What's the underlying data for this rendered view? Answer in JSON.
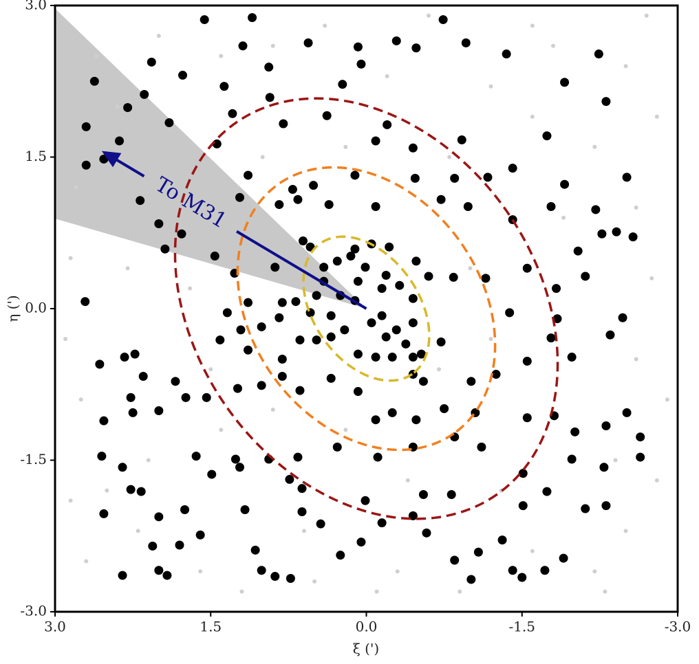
{
  "chart_data": {
    "type": "scatter",
    "xlabel": "ξ (')",
    "ylabel": "η (')",
    "xlim": [
      3,
      -3
    ],
    "ylim": [
      -3,
      3
    ],
    "xticks": [
      {
        "value": 3,
        "label": "3.0"
      },
      1.5,
      {
        "value": 0,
        "label": "0.0"
      },
      -1.5,
      {
        "value": -3,
        "label": "-3.0"
      }
    ],
    "yticks": [
      {
        "value": -3,
        "label": "-3.0"
      },
      -1.5,
      {
        "value": 0,
        "label": "0.0"
      },
      1.5,
      {
        "value": 3,
        "label": "3.0"
      }
    ],
    "shaded_region": {
      "color": "#c8c8c8",
      "points": [
        [
          0,
          0
        ],
        [
          3,
          2.97
        ],
        [
          3,
          0.89
        ]
      ]
    },
    "annotations": [
      {
        "text": "To M31",
        "color": "#0f0f8a",
        "from": [
          0,
          0
        ],
        "to": [
          2.55,
          1.56
        ]
      }
    ],
    "ellipses": [
      {
        "color": "#d8b92a",
        "center": [
          0,
          0
        ],
        "a": 0.77,
        "b": 0.52,
        "angle": 55
      },
      {
        "color": "#f08020",
        "center": [
          0,
          0
        ],
        "a": 1.47,
        "b": 1.14,
        "angle": 55
      },
      {
        "color": "#9a1616",
        "center": [
          0,
          0
        ],
        "a": 2.19,
        "b": 1.69,
        "angle": 55
      }
    ],
    "series": [
      {
        "color": "#cfcfcf",
        "x": [
          -2.7,
          -2.5,
          -2.8,
          -2.6,
          -2.75,
          -2.6,
          -2.8,
          -2.5,
          -2.2,
          -1.6,
          -1.2,
          -0.6,
          -0.2,
          0.4,
          0.9,
          1.4,
          2.0,
          2.6,
          2.8,
          2.85,
          2.9,
          2.75,
          2.85,
          2.7,
          2.2,
          1.6,
          1.2,
          0.5,
          -0.3,
          -0.9,
          -1.6,
          -2.3,
          -1.9,
          -1.6,
          -1.0,
          -0.7,
          0.2,
          0.9,
          1.7,
          2.3,
          1.9,
          2.4,
          -2.0,
          -1.3,
          -0.4,
          0.6,
          1.4,
          2.1,
          -2.2,
          -0.8,
          0.2,
          1.0,
          -1.2,
          1.5,
          -2.4,
          2.5,
          -0.1,
          1.1,
          -2.9,
          -1.8
        ],
        "values": [
          2.9,
          2.4,
          1.9,
          1.0,
          0.3,
          -0.5,
          -1.7,
          -2.2,
          -2.6,
          2.8,
          2.2,
          2.9,
          2.3,
          2.8,
          2.6,
          2.5,
          2.7,
          2.5,
          1.2,
          0.5,
          -0.3,
          -0.9,
          -1.9,
          -2.5,
          -2.2,
          -2.6,
          -2.8,
          -2.7,
          -2.6,
          -2.8,
          -2.4,
          -2.8,
          0.9,
          1.9,
          0.4,
          -0.6,
          -1.2,
          -1.0,
          0.2,
          0.4,
          1.2,
          2.0,
          -1.2,
          -1.8,
          -1.7,
          -2.2,
          -1.2,
          -1.5,
          1.6,
          1.5,
          1.6,
          1.5,
          -0.3,
          -0.6,
          -1.5,
          -1.8,
          -2.8,
          2.9,
          -0.9,
          2.6
        ]
      },
      {
        "color": "#000000",
        "x": [
          1.56,
          1.1,
          1.19,
          0.94,
          0.56,
          0.08,
          -0.29,
          -0.48,
          -0.74,
          -0.96,
          -1.35,
          -2.24,
          0.05,
          2.07,
          2.62,
          1.77,
          1.37,
          0.93,
          0.23,
          -1.91,
          -2.31,
          2.7,
          2.3,
          2.14,
          1.9,
          2.38,
          2.7,
          2.53,
          1.29,
          0.8,
          0.38,
          -0.2,
          -0.09,
          -0.45,
          -0.92,
          -1.74,
          1.44,
          1.14,
          0.71,
          0.51,
          0.11,
          -0.47,
          -0.85,
          -1.17,
          -1.41,
          -1.91,
          -2.51,
          2.18,
          2.0,
          1.94,
          1.78,
          1.22,
          0.84,
          0.66,
          0.36,
          -0.09,
          -0.72,
          -0.98,
          -1.41,
          -1.78,
          -2.21,
          -2.27,
          -2.41,
          -2.57,
          -2.04,
          1.46,
          1.27,
          0.88,
          0.61,
          0.15,
          -0.05,
          -0.22,
          -0.48,
          -0.6,
          -0.84,
          -1.15,
          -1.55,
          -1.83,
          -2.11,
          -1.38,
          -1.84,
          -2.47,
          2.71,
          2.57,
          2.53,
          2.33,
          2.23,
          2.15,
          2.55,
          2.35,
          2.27,
          2.17,
          2.53,
          2.0,
          1.75,
          2.27,
          2.25,
          2.0,
          1.74,
          1.54,
          1.41,
          1.24,
          1.14,
          1.01,
          0.81,
          0.64,
          0.34,
          0.08,
          -0.09,
          -0.25,
          -0.48,
          -0.75,
          -1.05,
          -1.55,
          -1.81,
          -2.01,
          -2.31,
          -2.51,
          -2.64,
          -2.64,
          -2.29,
          -1.98,
          -1.51,
          -1.11,
          -0.85,
          -0.45,
          -0.11,
          0.28,
          0.66,
          0.94,
          1.26,
          1.64,
          1.49,
          1.22,
          0.74,
          0.62,
          0.44,
          0.25,
          0.05,
          -0.15,
          -0.45,
          -0.58,
          -0.85,
          -1.08,
          -1.31,
          -1.51,
          -1.74,
          -2.11,
          -2.31,
          -0.82,
          -0.55,
          0.01,
          0.62,
          1.17,
          1.6,
          2.06,
          1.8,
          2.0,
          1.92,
          2.35,
          1.07,
          1.01,
          0.88,
          0.73,
          -1.01,
          -1.5,
          -1.41,
          -1.72,
          -1.9,
          0.11,
          -0.05,
          -0.19,
          -0.38,
          -0.45,
          -0.25,
          -0.09,
          0.08,
          0.34,
          0.48,
          0.64,
          0.34,
          0.25,
          0.41,
          0.48,
          0.08,
          -0.15,
          -0.32,
          -0.45,
          -0.72,
          -0.15,
          -0.45,
          0.28,
          0.11,
          -0.19,
          0.54,
          0.68,
          0.81,
          0.54,
          -0.45,
          -0.53,
          0.21,
          0.81,
          1.14,
          1.01,
          1.34,
          1.21,
          0.84,
          1.84,
          -0.55,
          -1.01,
          -1.25,
          -1.55,
          -1.78,
          -1.98,
          -2.35,
          0.01,
          0.41,
          -0.29
        ],
        "values": [
          2.86,
          2.88,
          2.6,
          2.39,
          2.63,
          2.59,
          2.65,
          2.58,
          2.86,
          2.63,
          2.52,
          2.52,
          2.42,
          2.44,
          2.25,
          2.31,
          2.2,
          2.09,
          2.22,
          2.24,
          2.05,
          1.8,
          1.99,
          2.12,
          1.84,
          1.66,
          1.42,
          1.48,
          1.93,
          1.83,
          1.91,
          1.82,
          1.66,
          1.59,
          1.67,
          1.71,
          1.63,
          1.32,
          1.18,
          1.22,
          1.32,
          1.29,
          1.29,
          1.3,
          1.39,
          1.23,
          1.3,
          1.07,
          0.84,
          0.59,
          0.74,
          1.1,
          1.03,
          1.08,
          1.03,
          1.01,
          1.08,
          1.01,
          0.88,
          1.01,
          0.98,
          0.74,
          0.76,
          0.71,
          0.57,
          0.52,
          0.35,
          0.41,
          0.67,
          0.52,
          0.64,
          0.61,
          0.47,
          0.32,
          0.31,
          0.3,
          0.4,
          0.2,
          0.32,
          -0.04,
          -0.1,
          -0.09,
          0.07,
          -0.55,
          -1.11,
          -0.48,
          -0.45,
          -0.67,
          -1.46,
          -1.57,
          -1.79,
          -1.81,
          -2.03,
          -2.06,
          -1.99,
          -0.88,
          -1.03,
          -1.01,
          -0.88,
          -0.88,
          -0.31,
          -0.79,
          -0.41,
          -0.76,
          -0.67,
          -0.81,
          -0.69,
          -0.82,
          -1.1,
          -1.03,
          -1.1,
          -0.99,
          -1.03,
          -1.08,
          -1.06,
          -1.22,
          -1.16,
          -1.03,
          -1.27,
          -1.47,
          -1.57,
          -1.49,
          -1.63,
          -1.37,
          -1.27,
          -1.37,
          -1.47,
          -1.37,
          -1.47,
          -1.49,
          -1.49,
          -1.46,
          -1.64,
          -1.57,
          -1.69,
          -1.78,
          -2.13,
          -2.44,
          -2.31,
          -2.12,
          -2.05,
          -2.22,
          -2.49,
          -2.41,
          -2.29,
          -1.95,
          -1.81,
          -1.98,
          -1.95,
          -1.84,
          -1.84,
          -1.9,
          -2.01,
          -1.99,
          -2.24,
          -2.35,
          -2.34,
          -2.59,
          -2.64,
          -2.64,
          -2.39,
          -2.59,
          -2.65,
          -2.67,
          -2.68,
          -2.66,
          -2.59,
          -2.59,
          -2.47,
          0.08,
          -0.14,
          -0.28,
          -0.35,
          -0.48,
          -0.48,
          -0.48,
          -0.45,
          -0.28,
          -0.31,
          -0.31,
          -0.07,
          0.13,
          0.27,
          0.13,
          0.27,
          0.2,
          0.23,
          0.1,
          -0.33,
          -0.07,
          -0.14,
          0.47,
          0.59,
          0.33,
          0.61,
          0.07,
          0.06,
          -0.04,
          -0.65,
          -0.45,
          -0.21,
          -0.5,
          0.06,
          -0.18,
          -0.04,
          -0.21,
          -0.09,
          -0.72,
          -0.72,
          -0.72,
          -0.65,
          -0.52,
          -0.29,
          -0.48,
          -0.26,
          0.41,
          0.41,
          -0.21
        ]
      }
    ]
  }
}
